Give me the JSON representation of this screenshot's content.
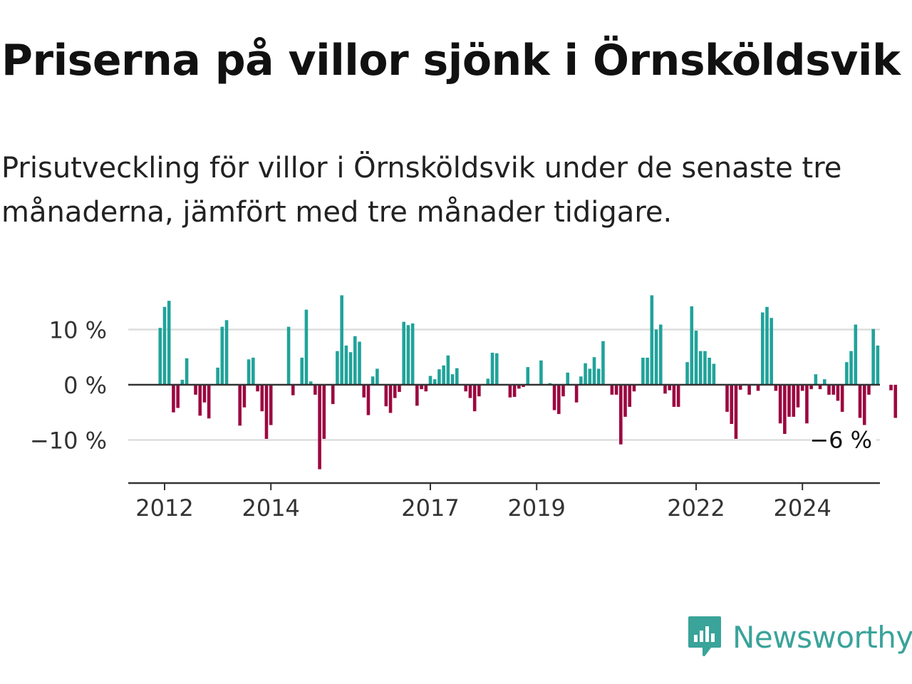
{
  "title": "Priserna på villor sjönk i Örnsköldsvik",
  "subtitle": "Prisutveckling för villor i Örnsköldsvik under de senaste tre månaderna, jämfört med tre månader tidigare.",
  "brand": {
    "name": "Newsworthy",
    "icon": "newsworthy-logo-icon",
    "color": "#3aa39a"
  },
  "colors": {
    "positive": "#20a39a",
    "negative": "#9c0840",
    "gridline": "#dddddd",
    "axis": "#333333"
  },
  "chart_data": {
    "type": "bar",
    "title": "Priserna på villor sjönk i Örnsköldsvik",
    "subtitle": "Prisutveckling för villor i Örnsköldsvik under de senaste tre månaderna, jämfört med tre månader tidigare.",
    "xlabel": "",
    "ylabel": "",
    "unit": "%",
    "ylim": [
      -18,
      18
    ],
    "yticks": [
      10,
      0,
      -10
    ],
    "ytick_labels": [
      "10 %",
      "0 %",
      "−10 %"
    ],
    "xtick_labels": [
      "2012",
      "2014",
      "2017",
      "2019",
      "2022",
      "2024"
    ],
    "xtick_years": [
      2012,
      2014,
      2017,
      2019,
      2022,
      2024
    ],
    "x_start": "2012-01",
    "x_end": "2025-03",
    "grid": true,
    "last_value_label": "−6 %",
    "series": [
      {
        "frequency": "monthly",
        "start": "2011-12",
        "values": [
          10.3,
          14.1,
          15.2,
          -5,
          -4.2,
          0.9,
          4.8,
          0,
          -1.8,
          -5.6,
          -3.2,
          -6.1,
          0,
          3.1,
          10.5,
          11.7,
          0,
          0,
          -7.4,
          -4.1,
          4.6,
          4.9,
          -1.2,
          -4.8,
          -9.8,
          -7.3,
          0,
          0,
          0,
          10.5,
          -1.9,
          0,
          4.9,
          13.6,
          0.6,
          -1.8,
          -15.3,
          -9.8,
          0,
          -3.5,
          6.1,
          16.2,
          7.1,
          5.9,
          8.8,
          7.8,
          -2.3,
          -5.5,
          1.5,
          2.9,
          0,
          -3.9,
          -5.1,
          -2.4,
          -1.3,
          11.4,
          10.8,
          11.1,
          -3.8,
          -0.8,
          -1.2,
          1.6,
          1,
          2.8,
          3.5,
          5.3,
          1.9,
          3,
          0,
          -1.2,
          -2.4,
          -4.8,
          -2.1,
          0,
          1.1,
          5.8,
          5.7,
          0,
          0,
          -2.3,
          -2.2,
          -0.7,
          -0.4,
          3.2,
          0,
          0,
          4.4,
          0,
          0.3,
          -4.6,
          -5.3,
          -2.1,
          2.2,
          0,
          -3.2,
          1.5,
          3.9,
          2.9,
          5,
          2.9,
          7.9,
          0,
          -1.8,
          -1.8,
          -10.8,
          -5.8,
          -4,
          -1.2,
          0,
          4.9,
          4.9,
          16.2,
          10,
          10.9,
          -1.6,
          -1,
          -4,
          -4,
          0,
          4.1,
          14.2,
          9.8,
          6.1,
          6.1,
          4.9,
          3.8,
          0,
          0,
          -4.9,
          -7.1,
          -9.8,
          -0.9,
          0,
          -1.8,
          0,
          -1.1,
          13.1,
          14.1,
          12.1,
          -1.1,
          -7,
          -8.9,
          -5.8,
          -5.8,
          -4.1,
          -1.1,
          -7,
          -0.8,
          1.9,
          -0.8,
          1,
          -1.8,
          -1.8,
          -2.9,
          -4.9,
          4.1,
          6.1,
          10.9,
          -6,
          -8.1,
          -1.8,
          10.1,
          7.1,
          0,
          0,
          -1,
          -6
        ]
      }
    ]
  }
}
